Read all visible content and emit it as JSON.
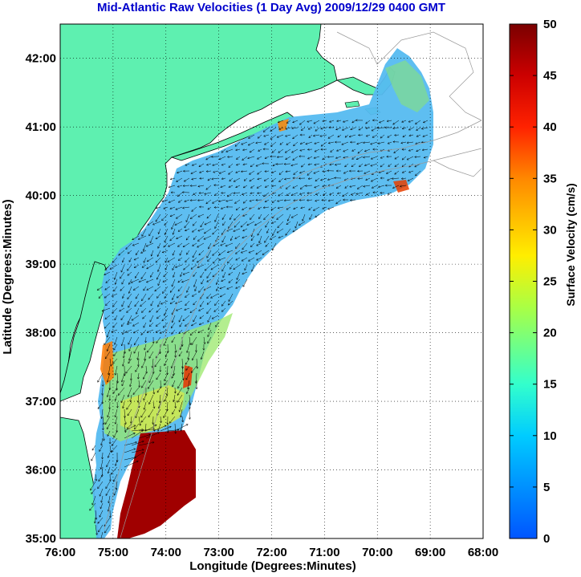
{
  "title": "Mid-Atlantic Raw Velocities (1 Day Avg) 2009/12/29 0400 GMT",
  "title_color": "#0000cc",
  "map": {
    "xlabel": "Longitude (Degrees:Minutes)",
    "ylabel": "Latitude (Degrees:Minutes)",
    "xlim": [
      -76,
      -68
    ],
    "ylim": [
      35,
      42.5
    ],
    "x_ticks": [
      {
        "value": -76,
        "label": "76:00"
      },
      {
        "value": -75,
        "label": "75:00"
      },
      {
        "value": -74,
        "label": "74:00"
      },
      {
        "value": -73,
        "label": "73:00"
      },
      {
        "value": -72,
        "label": "72:00"
      },
      {
        "value": -71,
        "label": "71:00"
      },
      {
        "value": -70,
        "label": "70:00"
      },
      {
        "value": -69,
        "label": "69:00"
      },
      {
        "value": -68,
        "label": "68:00"
      }
    ],
    "y_ticks": [
      {
        "value": 35,
        "label": "35:00"
      },
      {
        "value": 36,
        "label": "36:00"
      },
      {
        "value": 37,
        "label": "37:00"
      },
      {
        "value": 38,
        "label": "38:00"
      },
      {
        "value": 39,
        "label": "39:00"
      },
      {
        "value": 40,
        "label": "40:00"
      },
      {
        "value": 41,
        "label": "41:00"
      },
      {
        "value": 42,
        "label": "42:00"
      }
    ],
    "grid": "dotted",
    "land_color": "#5ef0b0",
    "coast_color": "#000000",
    "bathymetry_color": "#999999"
  },
  "colorbar": {
    "label": "Surface Velocity (cm/s)",
    "min": 0,
    "max": 50,
    "ticks": [
      {
        "value": 0,
        "label": "0"
      },
      {
        "value": 5,
        "label": "5"
      },
      {
        "value": 10,
        "label": "10"
      },
      {
        "value": 15,
        "label": "15"
      },
      {
        "value": 20,
        "label": "20"
      },
      {
        "value": 25,
        "label": "25"
      },
      {
        "value": 30,
        "label": "30"
      },
      {
        "value": 35,
        "label": "35"
      },
      {
        "value": 40,
        "label": "40"
      },
      {
        "value": 45,
        "label": "45"
      },
      {
        "value": 50,
        "label": "50"
      }
    ],
    "colormap": "jet"
  }
}
